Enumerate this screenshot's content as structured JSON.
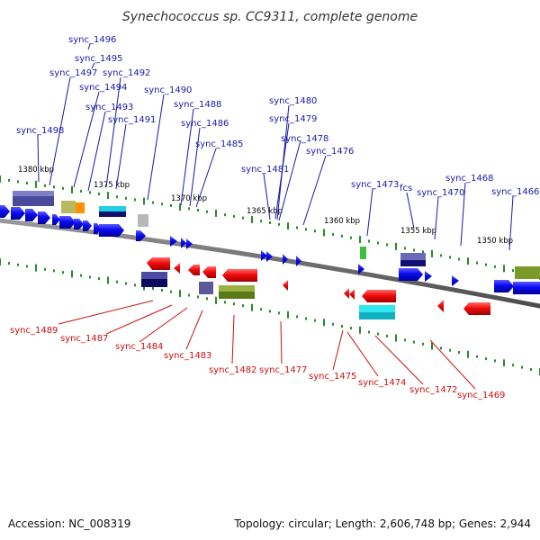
{
  "title": "Synechococcus sp. CC9311, complete genome",
  "footer": {
    "accession": "Accession: NC_008319",
    "summary": "Topology: circular; Length: 2,606,748 bp; Genes: 2,944"
  },
  "colors": {
    "forward_label": "#1a1aa8",
    "reverse_label": "#cc1010",
    "forward_gene": "#0a0af0",
    "reverse_gene": "#f00c0c",
    "backbone": "#7a7a7a",
    "tick": "#2a8a2a"
  },
  "scale_labels": [
    "1380 kbp",
    "1375 kbp",
    "1370 kbp",
    "1365 kbp",
    "1360 kbp",
    "1355 kbp",
    "1350 kbp"
  ],
  "forward_labels": [
    "sync_1496",
    "sync_1495",
    "sync_1497",
    "sync_1492",
    "sync_1494",
    "sync_1490",
    "sync_1493",
    "sync_1488",
    "sync_1491",
    "sync_1486",
    "sync_1498",
    "sync_1485",
    "sync_1480",
    "sync_1479",
    "sync_1478",
    "sync_1476",
    "sync_1481",
    "sync_1473",
    "fcs",
    "sync_1468",
    "sync_1470",
    "sync_1466"
  ],
  "reverse_labels": [
    "sync_1489",
    "sync_1487",
    "sync_1484",
    "sync_1483",
    "sync_1482",
    "sync_1477",
    "sync_1475",
    "sync_1474",
    "sync_1472",
    "sync_1469"
  ]
}
